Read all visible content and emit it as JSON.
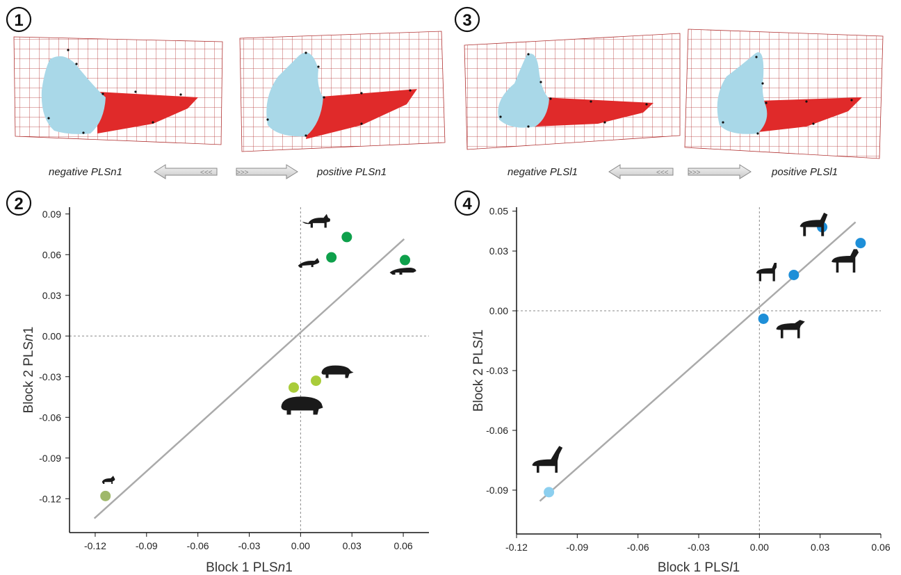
{
  "panels": {
    "p1": "1",
    "p2": "2",
    "p3": "3",
    "p4": "4"
  },
  "shapes_top_left": {
    "negative_label": "negative PLSn1",
    "positive_label": "positive PLSn1"
  },
  "shapes_top_right": {
    "negative_label": "negative PLSl1",
    "positive_label": "positive PLSl1"
  },
  "colors": {
    "mandible_red": "#e02a2a",
    "condyle_blue": "#a9d8e8",
    "grid": "#b03030",
    "regression_line": "#aaaaaa",
    "dark_green": "#0ea04b",
    "light_green": "#a9cc3a",
    "olive": "#9fb86a",
    "blue": "#1e8fd8",
    "light_blue": "#8ccfef",
    "silhouette": "#1a1a1a"
  },
  "chart_data": [
    {
      "type": "scatter",
      "xlabel_pre": "Block 1 PLS",
      "xlabel_ital": "n",
      "xlabel_post": "1",
      "ylabel_pre": "Block 2 PLS",
      "ylabel_ital": "n",
      "ylabel_post": "1",
      "xlim": [
        -0.135,
        0.075
      ],
      "ylim": [
        -0.145,
        0.095
      ],
      "xticks": [
        -0.12,
        -0.09,
        -0.06,
        -0.03,
        0.0,
        0.03,
        0.06
      ],
      "xtick_labels": [
        "-0.12",
        "-0.09",
        "-0.06",
        "-0.03",
        "0.00",
        "0.03",
        "0.06"
      ],
      "yticks": [
        -0.12,
        -0.09,
        -0.06,
        -0.03,
        0.0,
        0.03,
        0.06,
        0.09
      ],
      "ytick_labels": [
        "-0.12",
        "-0.09",
        "-0.06",
        "-0.03",
        "0.00",
        "0.03",
        "0.06",
        "0.09"
      ],
      "regression": [
        [
          -0.1205,
          -0.1345
        ],
        [
          0.0605,
          0.0715
        ]
      ],
      "points": [
        {
          "x": 0.027,
          "y": 0.073,
          "color": "#0ea04b",
          "icon": "fox-icon"
        },
        {
          "x": 0.018,
          "y": 0.058,
          "color": "#0ea04b",
          "icon": "weasel-icon"
        },
        {
          "x": 0.061,
          "y": 0.056,
          "color": "#0ea04b",
          "icon": "otter-icon"
        },
        {
          "x": 0.009,
          "y": -0.033,
          "color": "#a9cc3a",
          "icon": "tapir-icon"
        },
        {
          "x": -0.004,
          "y": -0.038,
          "color": "#a9cc3a",
          "icon": "hippo-icon"
        },
        {
          "x": -0.114,
          "y": -0.118,
          "color": "#9fb86a",
          "icon": "small-mammal-icon"
        }
      ]
    },
    {
      "type": "scatter",
      "xlabel_pre": "Block 1 PLS",
      "xlabel_ital": "l",
      "xlabel_post": "1",
      "ylabel_pre": "Block 2 PLS",
      "ylabel_ital": "l",
      "ylabel_post": "1",
      "xlim": [
        -0.12,
        0.06
      ],
      "ylim": [
        -0.112,
        0.052
      ],
      "xticks": [
        -0.12,
        -0.09,
        -0.06,
        -0.03,
        0.0,
        0.03,
        0.06
      ],
      "xtick_labels": [
        "-0.12",
        "-0.09",
        "-0.06",
        "-0.03",
        "0.00",
        "0.03",
        "0.06"
      ],
      "yticks": [
        -0.09,
        -0.06,
        -0.03,
        0.0,
        0.03,
        0.05
      ],
      "ytick_labels": [
        "-0.09",
        "-0.06",
        "-0.03",
        "0.00",
        "0.03",
        "0.05"
      ],
      "regression": [
        [
          -0.1085,
          -0.0955
        ],
        [
          0.0475,
          0.0445
        ]
      ],
      "points": [
        {
          "x": 0.031,
          "y": 0.042,
          "color": "#1e8fd8",
          "icon": "zebra-icon"
        },
        {
          "x": 0.05,
          "y": 0.034,
          "color": "#1e8fd8",
          "icon": "deer-icon"
        },
        {
          "x": 0.017,
          "y": 0.018,
          "color": "#1e8fd8",
          "icon": "antelope-icon"
        },
        {
          "x": 0.002,
          "y": -0.004,
          "color": "#1e8fd8",
          "icon": "horse-icon"
        },
        {
          "x": -0.104,
          "y": -0.091,
          "color": "#8ccfef",
          "icon": "guanaco-icon"
        }
      ]
    }
  ]
}
